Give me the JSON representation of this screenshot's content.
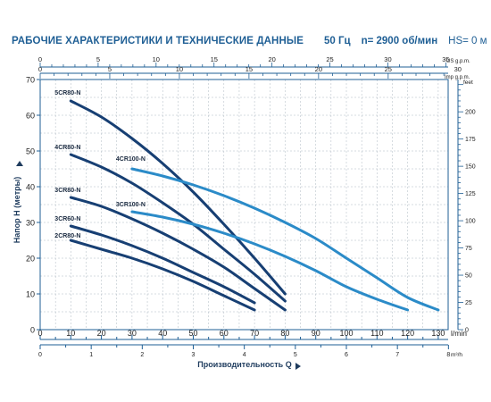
{
  "header": {
    "title": "РАБОЧИЕ ХАРАКТЕРИСТИКИ И ТЕХНИЧЕСКИЕ ДАННЫЕ",
    "freq": "50 Гц",
    "speed": "n= 2900 об/мин",
    "hs": "HS= 0 м"
  },
  "chart_data": {
    "type": "line",
    "title": "",
    "xlabel": "Производительность Q",
    "ylabel": "Напор H (метры)",
    "x_unit": "l/min",
    "xlim": [
      0,
      135
    ],
    "ylim": [
      0,
      70
    ],
    "x_ticks": [
      0,
      10,
      20,
      30,
      40,
      50,
      60,
      70,
      80,
      90,
      100,
      110,
      120,
      130
    ],
    "y_ticks": [
      0,
      10,
      20,
      30,
      40,
      50,
      60,
      70
    ],
    "grid": true,
    "secondary_axes": {
      "us_gpm": {
        "label": "US g.p.m.",
        "ticks": [
          0,
          5,
          10,
          15,
          20,
          25,
          30,
          35
        ]
      },
      "imp_gpm": {
        "label": "Imp g.p.m.",
        "ticks": [
          0,
          5,
          10,
          15,
          20,
          25,
          30
        ]
      },
      "m3h": {
        "label": "m³/h",
        "ticks": [
          0,
          1,
          2,
          3,
          4,
          5,
          6,
          7,
          8
        ]
      },
      "feet": {
        "label": "feet",
        "ticks": [
          0,
          25,
          50,
          75,
          100,
          125,
          150,
          175,
          200
        ]
      }
    },
    "colors": {
      "dark": "#173f73",
      "light": "#2b8bc8",
      "axis": "#1f5f95",
      "grid": "#aeb8c2"
    },
    "series": [
      {
        "name": "5CR80-N",
        "color_key": "dark",
        "x": [
          10,
          20,
          30,
          40,
          50,
          60,
          70,
          80
        ],
        "y": [
          64,
          59.5,
          53.5,
          46.5,
          38.5,
          29.5,
          20,
          10
        ]
      },
      {
        "name": "4CR80-N",
        "color_key": "dark",
        "x": [
          10,
          20,
          30,
          40,
          50,
          60,
          70,
          80
        ],
        "y": [
          49,
          45.5,
          41,
          35.5,
          29.5,
          22.5,
          15.5,
          8
        ]
      },
      {
        "name": "3CR80-N",
        "color_key": "dark",
        "x": [
          10,
          20,
          30,
          40,
          50,
          60,
          70,
          80
        ],
        "y": [
          37,
          34.5,
          31,
          27,
          22.5,
          17.5,
          11.5,
          5.5
        ]
      },
      {
        "name": "3CR60-N",
        "color_key": "dark",
        "x": [
          10,
          20,
          30,
          40,
          50,
          60,
          70
        ],
        "y": [
          29,
          26.5,
          23.5,
          20,
          16,
          12,
          7.5
        ]
      },
      {
        "name": "2CR80-N",
        "color_key": "dark",
        "x": [
          10,
          20,
          30,
          40,
          50,
          60,
          70
        ],
        "y": [
          25,
          22.5,
          20,
          17,
          13.5,
          9.5,
          5.5
        ]
      },
      {
        "name": "4CR100-N",
        "color_key": "light",
        "x": [
          30,
          40,
          50,
          60,
          70,
          80,
          90,
          100,
          110,
          120,
          130
        ],
        "y": [
          45,
          43,
          40.5,
          37.5,
          34,
          30,
          25.5,
          20,
          14.5,
          9,
          5.5
        ]
      },
      {
        "name": "3CR100-N",
        "color_key": "light",
        "x": [
          30,
          40,
          50,
          60,
          70,
          80,
          90,
          100,
          110,
          120
        ],
        "y": [
          33,
          31.5,
          29.5,
          27,
          24,
          20.5,
          16.5,
          12,
          8.5,
          5.5
        ]
      }
    ]
  }
}
